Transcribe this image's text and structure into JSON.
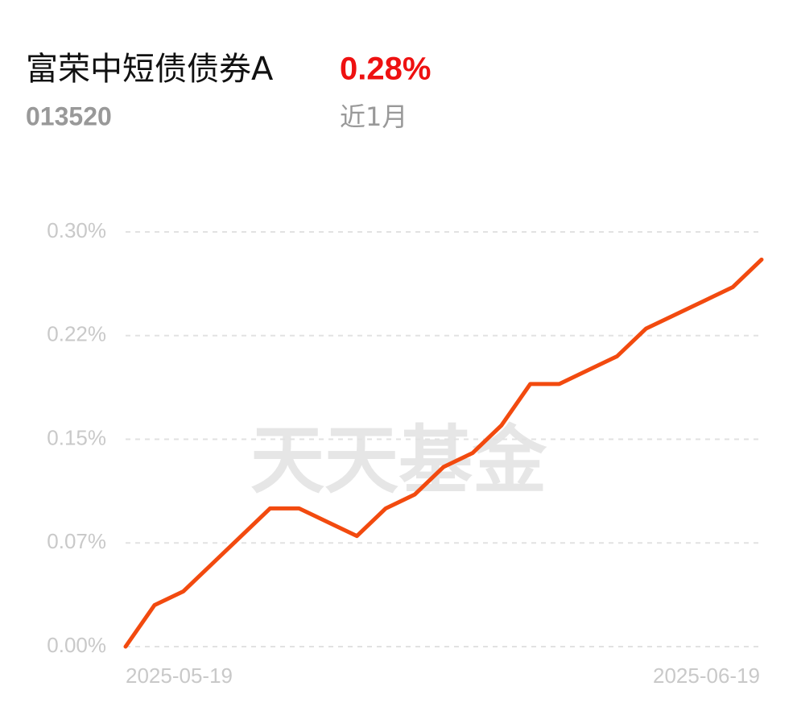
{
  "fund": {
    "name": "富荣中短债债券A",
    "code": "013520",
    "return": "0.28%",
    "period": "近1月"
  },
  "watermark": "天天基金",
  "chart_data": {
    "type": "line",
    "categories": [
      "2025-05-19",
      null,
      null,
      null,
      null,
      null,
      null,
      null,
      null,
      null,
      null,
      null,
      null,
      null,
      null,
      null,
      null,
      null,
      null,
      null,
      null,
      null,
      "2025-06-19"
    ],
    "values": [
      0,
      0.03,
      0.04,
      0.06,
      0.08,
      0.1,
      0.1,
      0.09,
      0.08,
      0.1,
      0.11,
      0.13,
      0.14,
      0.16,
      0.19,
      0.19,
      0.2,
      0.21,
      0.23,
      0.24,
      0.25,
      0.26,
      0.28
    ],
    "color": "#f24a0f",
    "ylim": [
      0,
      0.3
    ],
    "yticks": [
      {
        "value": 0,
        "label": "0.00%"
      },
      {
        "value": 0.075,
        "label": "0.07%"
      },
      {
        "value": 0.15,
        "label": "0.15%"
      },
      {
        "value": 0.225,
        "label": "0.22%"
      },
      {
        "value": 0.3,
        "label": "0.30%"
      }
    ],
    "grid": true
  }
}
